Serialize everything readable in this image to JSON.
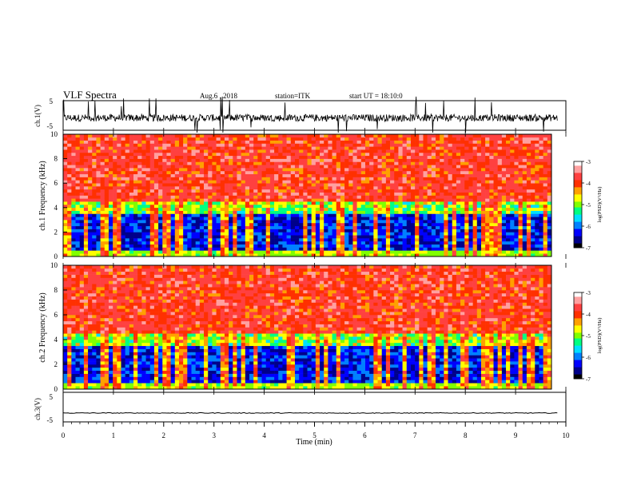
{
  "header": {
    "title": "VLF Spectra",
    "date": "Aug.6 , 2018",
    "station": "station=ITK",
    "start": "start UT = 18:10:0"
  },
  "chart_data": [
    {
      "type": "line",
      "ylabel": "ch.1(V)",
      "ylim": [
        -5,
        5
      ],
      "yticks": [
        "5",
        "-5"
      ],
      "xlim": [
        0,
        10
      ],
      "baseline": -0.8,
      "line_color": "#000000"
    },
    {
      "type": "heatmap",
      "ylabel": "ch.1 Frequency (kHz)",
      "ylim": [
        0,
        10
      ],
      "yticks": [
        "0",
        "2",
        "4",
        "6",
        "8",
        "10"
      ],
      "xlim": [
        0,
        10
      ],
      "colorbar": {
        "label": "log(PSD)(V²/Hz)",
        "range": [
          -7,
          -3
        ],
        "ticks": [
          "-3",
          "-4",
          "-5",
          "-6",
          "-7"
        ]
      },
      "band_edge_khz": 4
    },
    {
      "type": "heatmap",
      "ylabel": "ch.2 Frequency (kHz)",
      "ylim": [
        0,
        10
      ],
      "yticks": [
        "0",
        "2",
        "4",
        "6",
        "8",
        "10"
      ],
      "xlim": [
        0,
        10
      ],
      "colorbar": {
        "label": "log(PSD)(V²/Hz)",
        "range": [
          -7,
          -3
        ],
        "ticks": [
          "-3",
          "-4",
          "-5",
          "-6",
          "-7"
        ]
      },
      "band_edge_khz": 4
    },
    {
      "type": "line",
      "ylabel": "ch.3(V)",
      "ylim": [
        -5,
        5
      ],
      "yticks": [
        "5",
        "-5"
      ],
      "xlim": [
        0,
        10
      ],
      "baseline": -2,
      "line_color": "#000000"
    }
  ],
  "xaxis": {
    "label": "Time (min)",
    "ticks": [
      "0",
      "1",
      "2",
      "3",
      "4",
      "5",
      "6",
      "7",
      "8",
      "9",
      "10"
    ]
  },
  "colormap": [
    "#000000",
    "#00008a",
    "#0000ff",
    "#0080ff",
    "#00e0ff",
    "#00ff80",
    "#80ff00",
    "#ffff00",
    "#ffa000",
    "#ff3000",
    "#ff4040",
    "#ffa0a0",
    "#ffffff"
  ]
}
